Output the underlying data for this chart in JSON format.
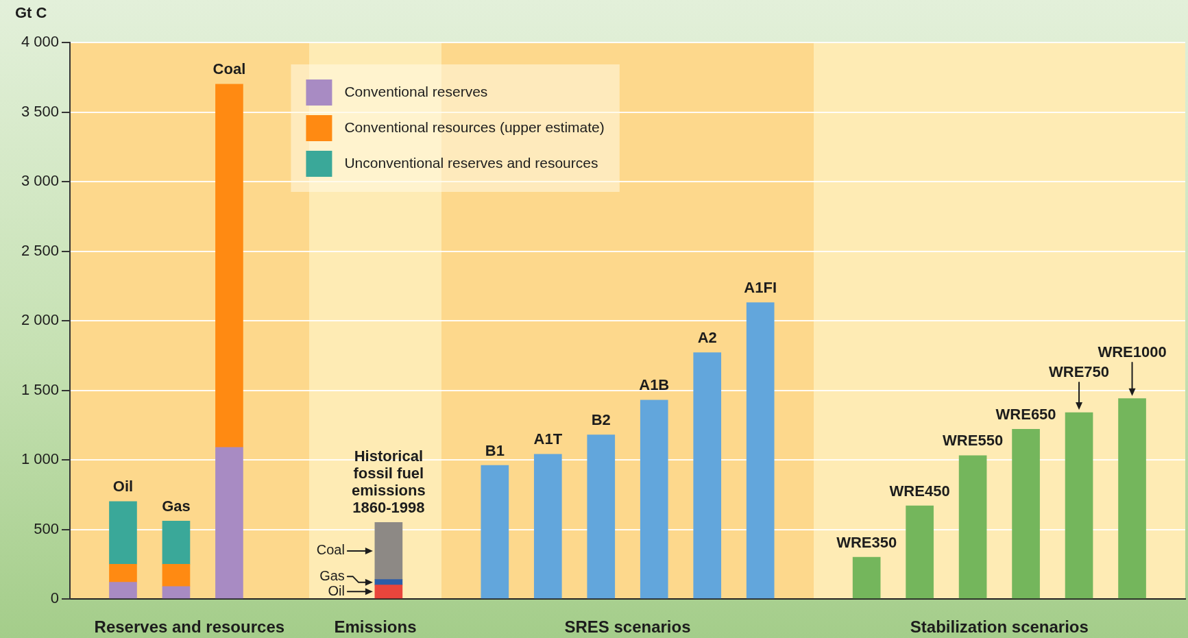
{
  "chart_data": {
    "type": "bar",
    "ylabel": "Gt C",
    "categories": [
      null,
      "Oil",
      "Gas",
      "Coal",
      null,
      null,
      "Historical fossil fuel emissions 1860-1998",
      null,
      "B1",
      "A1T",
      "B2",
      "A1B",
      "A2",
      "A1FI",
      null,
      "WRE350",
      "WRE450",
      "WRE550",
      "WRE650",
      "WRE750",
      "WRE1000",
      null
    ],
    "stacked": true,
    "series": [
      {
        "name": "Conventional reserves",
        "color": "#a88bc3",
        "values": [
          null,
          120,
          90,
          1090,
          null,
          null,
          null,
          null,
          null,
          null,
          null,
          null,
          null,
          null,
          null,
          null,
          null,
          null,
          null,
          null,
          null,
          null
        ]
      },
      {
        "name": "Conventional resources (upper estimate)",
        "color": "#ff8a12",
        "values": [
          null,
          130,
          160,
          2610,
          null,
          null,
          null,
          null,
          null,
          null,
          null,
          null,
          null,
          null,
          null,
          null,
          null,
          null,
          null,
          null,
          null,
          null
        ]
      },
      {
        "name": "Unconventional reserves and resources",
        "color": "#3aa899",
        "values": [
          null,
          450,
          310,
          null,
          null,
          null,
          null,
          null,
          null,
          null,
          null,
          null,
          null,
          null,
          null,
          null,
          null,
          null,
          null,
          null,
          null,
          null
        ]
      },
      {
        "name": "Oil",
        "color": "#e8453c",
        "values": [
          null,
          null,
          null,
          null,
          null,
          null,
          100,
          null,
          null,
          null,
          null,
          null,
          null,
          null,
          null,
          null,
          null,
          null,
          null,
          null,
          null,
          null
        ]
      },
      {
        "name": "Gas",
        "color": "#2b5da8",
        "values": [
          null,
          null,
          null,
          null,
          null,
          null,
          40,
          null,
          null,
          null,
          null,
          null,
          null,
          null,
          null,
          null,
          null,
          null,
          null,
          null,
          null,
          null
        ]
      },
      {
        "name": "Coal",
        "color": "#8d8985",
        "values": [
          null,
          null,
          null,
          null,
          null,
          null,
          410,
          null,
          null,
          null,
          null,
          null,
          null,
          null,
          null,
          null,
          null,
          null,
          null,
          null,
          null,
          null
        ]
      },
      {
        "color": "#62a6dc",
        "values": [
          null,
          null,
          null,
          null,
          null,
          null,
          null,
          null,
          960,
          1040,
          1180,
          1430,
          1770,
          2130,
          null,
          null,
          null,
          null,
          null,
          null,
          null,
          null
        ]
      },
      {
        "color": "#74b65c",
        "values": [
          null,
          null,
          null,
          null,
          null,
          null,
          null,
          null,
          null,
          null,
          null,
          null,
          null,
          null,
          null,
          300,
          670,
          1030,
          1220,
          1340,
          1440,
          null
        ]
      }
    ],
    "ylim": [
      0,
      4000
    ],
    "yticks": [
      0,
      500,
      {
        "value": 1000,
        "label": "1 000"
      },
      {
        "value": 1500,
        "label": "1 500"
      },
      {
        "value": 2000,
        "label": "2 000"
      },
      {
        "value": 2500,
        "label": "2 500"
      },
      {
        "value": 3000,
        "label": "3 000"
      },
      {
        "value": 3500,
        "label": "3 500"
      },
      {
        "value": 4000,
        "label": "4 000"
      }
    ],
    "grid": "y",
    "legend": "top left",
    "annotations": [
      "Reserves and resources",
      "Emissions",
      "SRES scenarios",
      "Stabilization scenarios"
    ]
  }
}
